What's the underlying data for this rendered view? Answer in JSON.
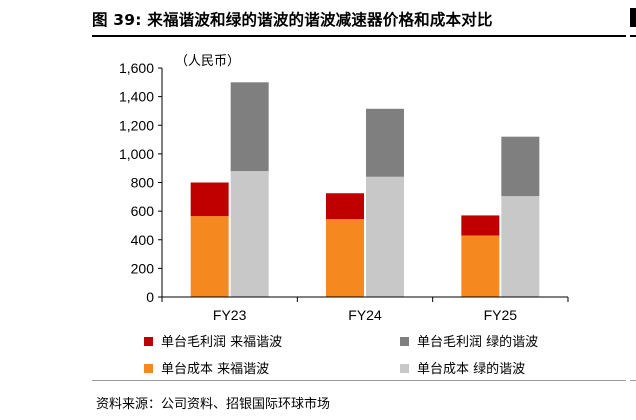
{
  "title": "图 39: 来福谐波和绿的谐波的谐波减速器价格和成本对比",
  "unit_label": "（人民币）",
  "source": "资料来源：公司资料、招银国际环球市场",
  "colors": {
    "lf_profit": "#c00000",
    "lf_cost": "#f5891f",
    "ld_profit": "#7f7f7f",
    "ld_cost": "#c8c8c8"
  },
  "chart_data": {
    "type": "bar",
    "stacked": true,
    "categories": [
      "FY23",
      "FY24",
      "FY25"
    ],
    "ylim": [
      0,
      1600
    ],
    "yticks": [
      "0",
      "200",
      "400",
      "600",
      "800",
      "1,000",
      "1,200",
      "1,400",
      "1,600"
    ],
    "ytick_values": [
      0,
      200,
      400,
      600,
      800,
      1000,
      1200,
      1400,
      1600
    ],
    "grid": false,
    "legend_position": "bottom",
    "stacks": [
      {
        "group": "来福谐波",
        "series": [
          {
            "name": "单台成本 来福谐波",
            "values": [
              565,
              545,
              430
            ],
            "color": "#f5891f"
          },
          {
            "name": "单台毛利润 来福谐波",
            "values": [
              235,
              180,
              140
            ],
            "color": "#c00000"
          }
        ]
      },
      {
        "group": "绿的谐波",
        "series": [
          {
            "name": "单台成本 绿的谐波",
            "values": [
              880,
              840,
              705
            ],
            "color": "#c8c8c8"
          },
          {
            "name": "单台毛利润 绿的谐波",
            "values": [
              620,
              475,
              415
            ],
            "color": "#7f7f7f"
          }
        ]
      }
    ]
  },
  "legend": [
    {
      "label": "单台毛利润 来福谐波",
      "color": "#c00000"
    },
    {
      "label": "单台毛利润 绿的谐波",
      "color": "#7f7f7f"
    },
    {
      "label": "单台成本 来福谐波",
      "color": "#f5891f"
    },
    {
      "label": "单台成本 绿的谐波",
      "color": "#c8c8c8"
    }
  ]
}
